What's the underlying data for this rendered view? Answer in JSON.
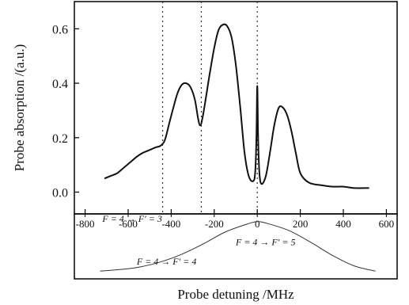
{
  "chart_data": [
    {
      "type": "line",
      "title": "",
      "xlabel": "Probe detuning /MHz",
      "ylabel": "Probe absorption /(a.u.)",
      "xlim": [
        -850,
        650
      ],
      "ylim": [
        -0.08,
        0.7
      ],
      "x_ticks": [
        -800,
        -600,
        -400,
        -200,
        0,
        200,
        400,
        600
      ],
      "x_tick_labels": [
        "-800",
        "-600",
        "-400",
        "-200",
        "0",
        "200",
        "400",
        "600"
      ],
      "y_ticks": [
        0.0,
        0.2,
        0.4,
        0.6
      ],
      "y_tick_labels": [
        "0.0",
        "0.2",
        "0.4",
        "0.6"
      ],
      "grid": false,
      "vlines": [
        -440,
        -260,
        0
      ],
      "series": [
        {
          "x": [
            -710,
            -680,
            -650,
            -620,
            -590,
            -560,
            -530,
            -500,
            -470,
            -450,
            -430,
            -410,
            -390,
            -370,
            -350,
            -330,
            -310,
            -290,
            -275,
            -265,
            -255,
            -240,
            -220,
            -200,
            -180,
            -160,
            -140,
            -120,
            -100,
            -80,
            -60,
            -40,
            -20,
            -10,
            -4,
            0,
            4,
            10,
            20,
            40,
            60,
            80,
            100,
            120,
            140,
            160,
            180,
            200,
            240,
            300,
            350,
            400,
            450,
            520
          ],
          "y": [
            0.05,
            0.06,
            0.07,
            0.09,
            0.11,
            0.13,
            0.145,
            0.155,
            0.165,
            0.17,
            0.19,
            0.25,
            0.31,
            0.365,
            0.395,
            0.4,
            0.385,
            0.34,
            0.27,
            0.245,
            0.27,
            0.34,
            0.44,
            0.53,
            0.595,
            0.615,
            0.61,
            0.57,
            0.47,
            0.32,
            0.15,
            0.06,
            0.04,
            0.07,
            0.2,
            0.39,
            0.2,
            0.07,
            0.03,
            0.06,
            0.15,
            0.25,
            0.31,
            0.31,
            0.28,
            0.22,
            0.14,
            0.07,
            0.035,
            0.025,
            0.02,
            0.02,
            0.015,
            0.015
          ]
        }
      ]
    },
    {
      "type": "line",
      "title": "",
      "xlabel": "",
      "ylabel": "",
      "xlim": [
        -850,
        650
      ],
      "x_ticks": [
        -800,
        -600,
        -400,
        -200,
        0,
        200,
        400,
        600
      ],
      "annotations": [
        {
          "text": "F = 4 → F′ = 3",
          "x": -720,
          "y": 0.88
        },
        {
          "text": "F = 4 → F′ = 4",
          "x": -560,
          "y": 0.22
        },
        {
          "text": "F = 4 → F′ = 5",
          "x": -100,
          "y": 0.52
        }
      ],
      "series": [
        {
          "x": [
            -730,
            -650,
            -550,
            -450,
            -350,
            -250,
            -150,
            -50,
            0,
            50,
            150,
            250,
            350,
            450,
            550
          ],
          "y": [
            0.12,
            0.14,
            0.18,
            0.26,
            0.38,
            0.54,
            0.72,
            0.84,
            0.88,
            0.85,
            0.74,
            0.56,
            0.36,
            0.2,
            0.12
          ]
        }
      ]
    }
  ]
}
